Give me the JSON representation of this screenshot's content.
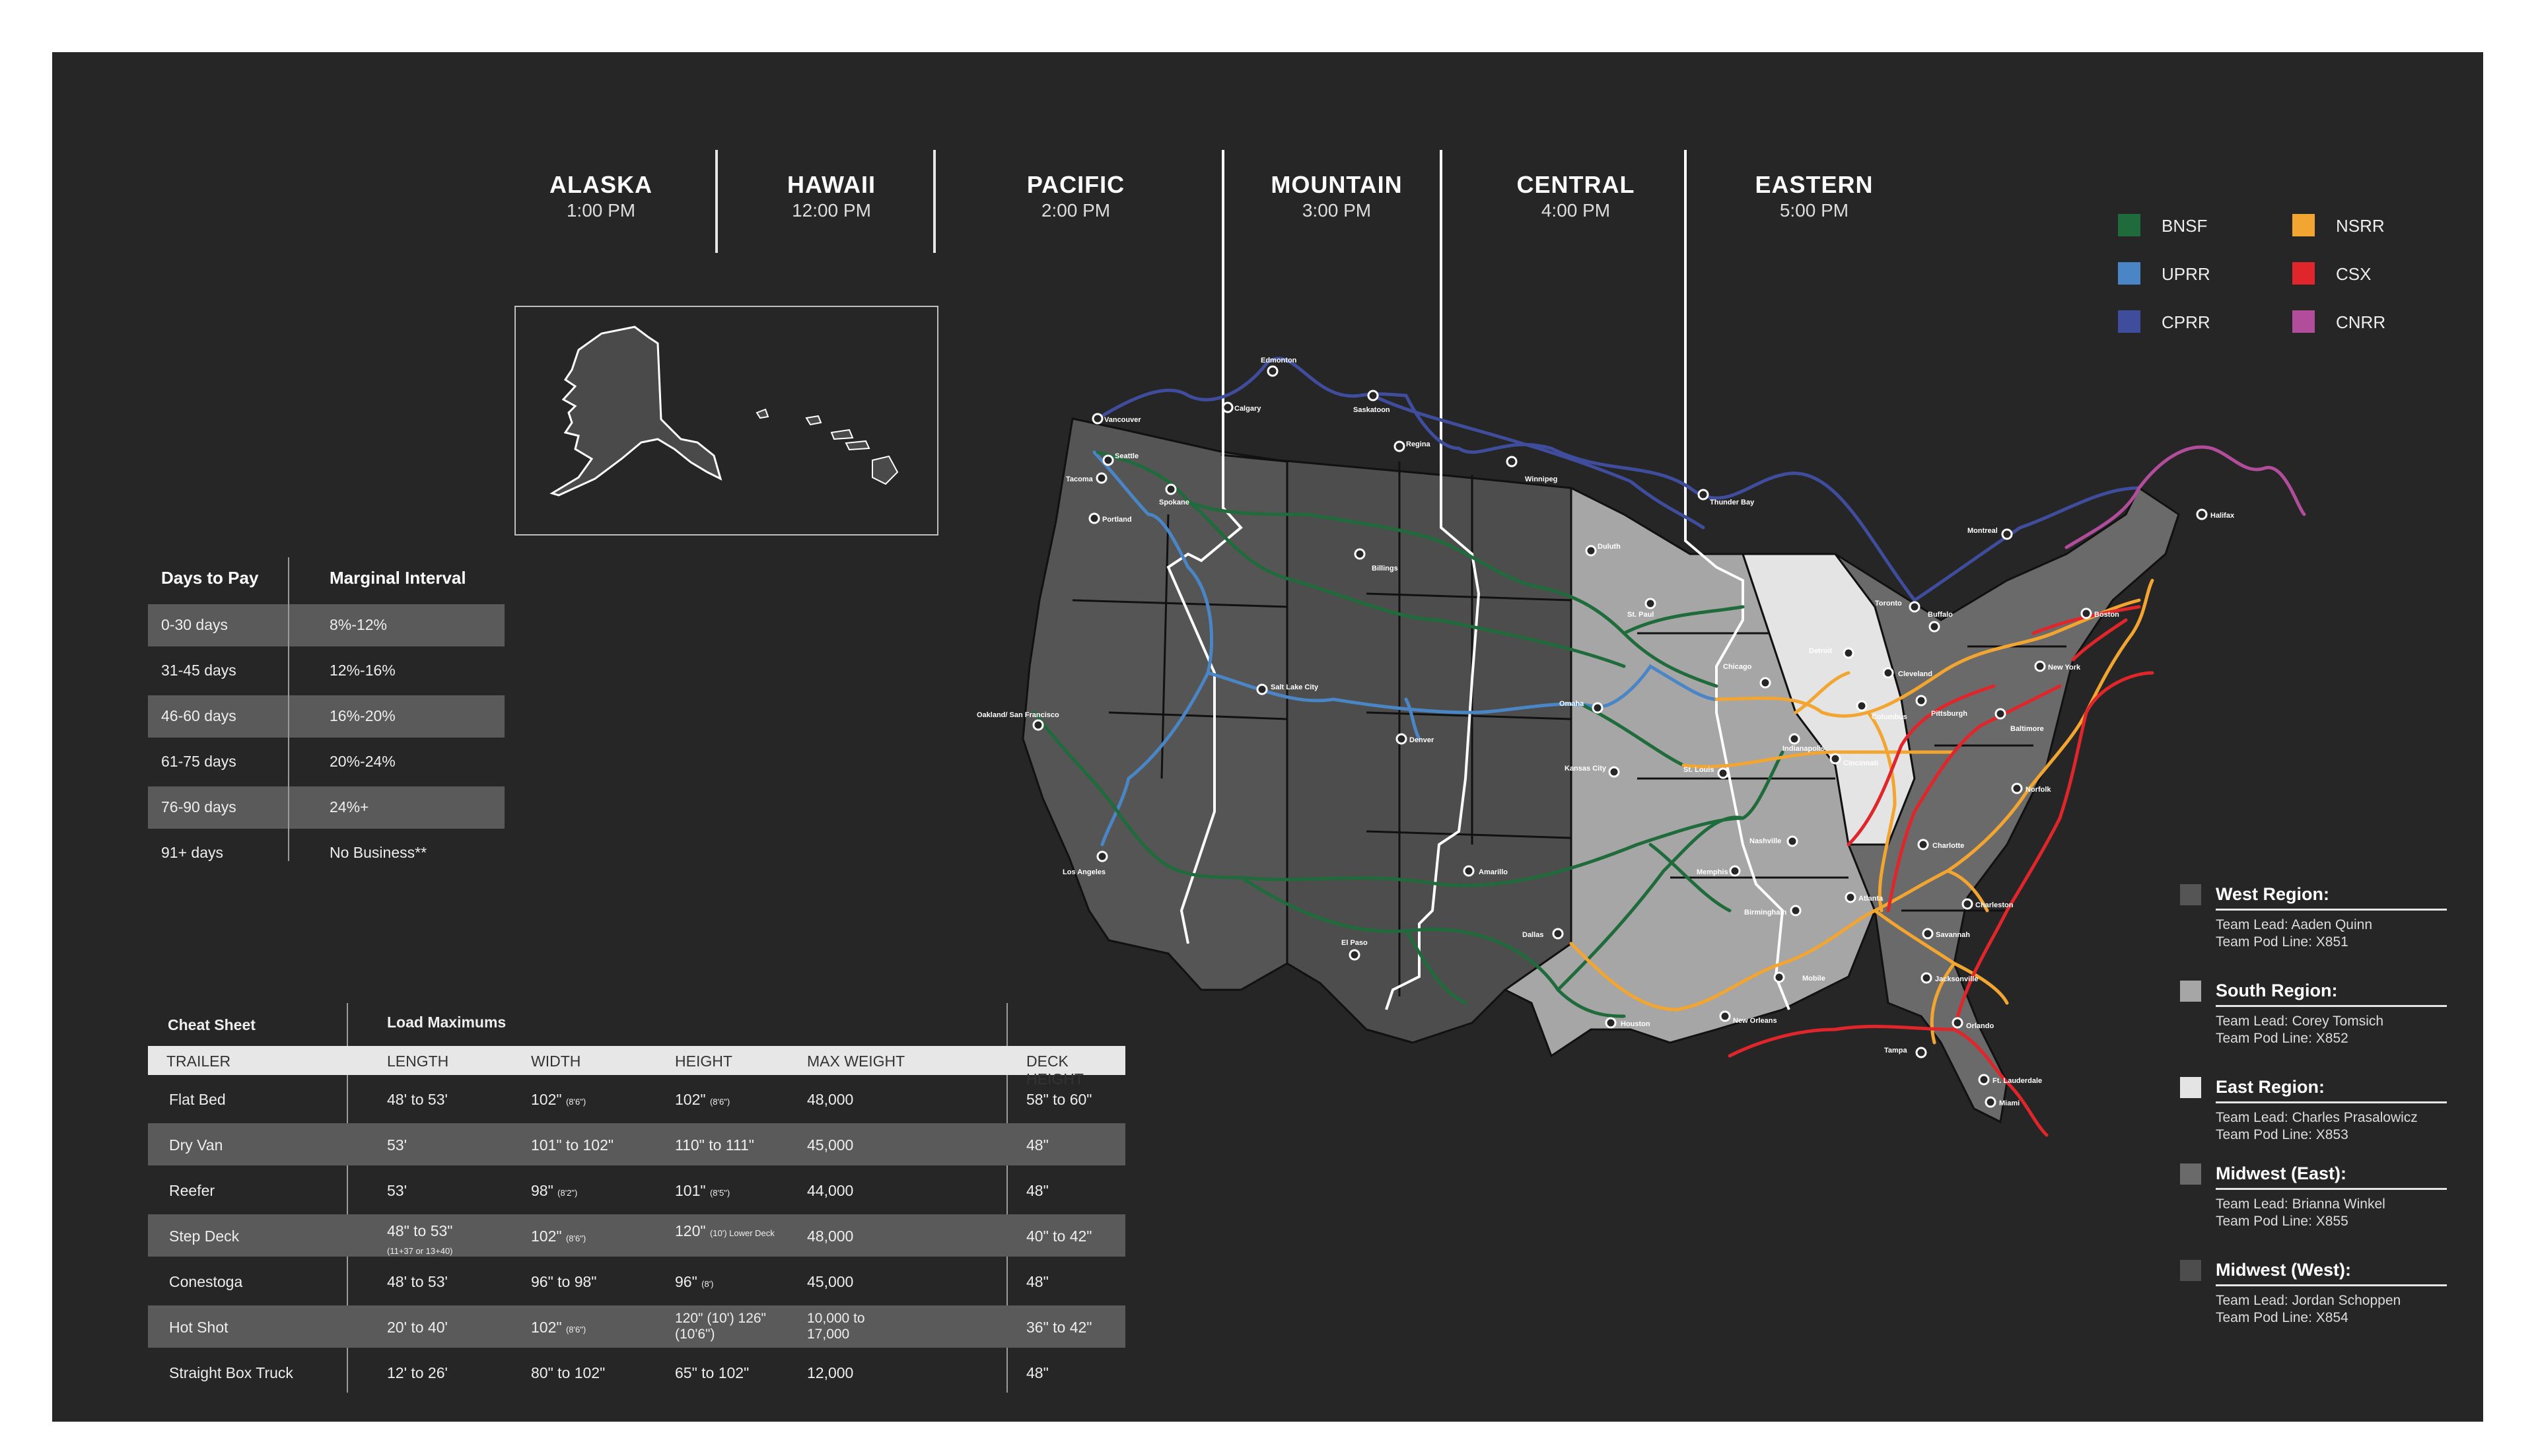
{
  "timezones": [
    {
      "name": "ALASKA",
      "time": "1:00 PM"
    },
    {
      "name": "HAWAII",
      "time": "12:00 PM"
    },
    {
      "name": "PACIFIC",
      "time": "2:00 PM"
    },
    {
      "name": "MOUNTAIN",
      "time": "3:00 PM"
    },
    {
      "name": "CENTRAL",
      "time": "4:00 PM"
    },
    {
      "name": "EASTERN",
      "time": "5:00 PM"
    }
  ],
  "railroads": [
    {
      "name": "BNSF",
      "color": "#1f6b3c"
    },
    {
      "name": "UPRR",
      "color": "#4a86c5"
    },
    {
      "name": "CPRR",
      "color": "#3f4d9c"
    },
    {
      "name": "NSRR",
      "color": "#f2a530"
    },
    {
      "name": "CSX",
      "color": "#e0262b"
    },
    {
      "name": "CNRR",
      "color": "#b24d9c"
    }
  ],
  "payment_table": {
    "headers": [
      "Days to Pay",
      "Marginal Interval"
    ],
    "rows": [
      [
        "0-30 days",
        "8%-12%"
      ],
      [
        "31-45 days",
        "12%-16%"
      ],
      [
        "46-60 days",
        "16%-20%"
      ],
      [
        "61-75 days",
        "20%-24%"
      ],
      [
        "76-90 days",
        "24%+"
      ],
      [
        "91+ days",
        "No Business**"
      ]
    ]
  },
  "cheat_sheet": {
    "title": "Cheat Sheet",
    "subtitle": "Load Maximums",
    "columns": [
      "TRAILER",
      "LENGTH",
      "WIDTH",
      "HEIGHT",
      "MAX WEIGHT",
      "DECK HEIGHT"
    ],
    "rows": [
      {
        "trailer": "Flat Bed",
        "length": "48' to 53'",
        "length_note": "",
        "width": "102\"",
        "width_note": "(8'6\")",
        "height": "102\"",
        "height_note": "(8'6\")",
        "weight": "48,000",
        "deck": "58\" to 60\""
      },
      {
        "trailer": "Dry Van",
        "length": "53'",
        "length_note": "",
        "width": "101\" to 102\"",
        "width_note": "",
        "height": "110\" to 111\"",
        "height_note": "",
        "weight": "45,000",
        "deck": "48\""
      },
      {
        "trailer": "Reefer",
        "length": "53'",
        "length_note": "",
        "width": "98\"",
        "width_note": "(8'2\")",
        "height": "101\"",
        "height_note": "(8'5\")",
        "weight": "44,000",
        "deck": "48\""
      },
      {
        "trailer": "Step Deck",
        "length": "48\" to 53\"",
        "length_note": "(11+37 or 13+40)",
        "width": "102\"",
        "width_note": "(8'6\")",
        "height": "120\"",
        "height_note": "(10') Lower Deck",
        "weight": "48,000",
        "deck": "40\" to 42\""
      },
      {
        "trailer": "Conestoga",
        "length": "48' to 53'",
        "length_note": "",
        "width": "96\" to 98\"",
        "width_note": "",
        "height": "96\"",
        "height_note": "(8')",
        "weight": "45,000",
        "deck": "48\""
      },
      {
        "trailer": "Hot Shot",
        "length": "20' to 40'",
        "length_note": "",
        "width": "102\"",
        "width_note": "(8'6\")",
        "height": "120\" (10') 126\" (10'6\")",
        "height_note": "",
        "weight": "10,000 to 17,000",
        "deck": "36\" to 42\""
      },
      {
        "trailer": "Straight Box Truck",
        "length": "12' to 26'",
        "length_note": "",
        "width": "80\" to 102\"",
        "width_note": "",
        "height": "65\" to 102\"",
        "height_note": "",
        "weight": "12,000",
        "deck": "48\""
      }
    ]
  },
  "regions": [
    {
      "title": "West Region:",
      "lead": "Team Lead: Aaden Quinn",
      "pod": "Team Pod Line: X851",
      "color": "#555555"
    },
    {
      "title": "South Region:",
      "lead": "Team Lead: Corey Tomsich",
      "pod": "Team Pod Line: X852",
      "color": "#a6a6a6"
    },
    {
      "title": "East Region:",
      "lead": "Team Lead: Charles Prasalowicz",
      "pod": "Team Pod Line: X853",
      "color": "#e4e4e4"
    },
    {
      "title": "Midwest (East):",
      "lead": "Team Lead: Brianna Winkel",
      "pod": "Team Pod Line: X855",
      "color": "#6a6a6a"
    },
    {
      "title": "Midwest (West):",
      "lead": "Team Lead: Jordan Schoppen",
      "pod": "Team Pod Line: X854",
      "color": "#4d4d4d"
    }
  ],
  "cities": [
    "Vancouver",
    "Edmonton",
    "Calgary",
    "Saskatoon",
    "Regina",
    "Winnipeg",
    "Thunder Bay",
    "Seattle",
    "Tacoma",
    "Portland",
    "Spokane",
    "Billings",
    "Duluth",
    "St. Paul",
    "Montreal",
    "Toronto",
    "Buffalo",
    "Boston",
    "Halifax",
    "Detroit",
    "Cleveland",
    "Chicago",
    "New York",
    "Omaha",
    "Salt Lake City",
    "Denver",
    "Oakland/ San Francisco",
    "Columbus",
    "Pittsburgh",
    "Baltimore",
    "Indianapolis",
    "Cincinnati",
    "Kansas City",
    "St. Louis",
    "Norfolk",
    "Nashville",
    "Charlotte",
    "Memphis",
    "Los Angeles",
    "Amarillo",
    "Atlanta",
    "Charleston",
    "Birmingham",
    "Savannah",
    "El Paso",
    "Dallas",
    "Mobile",
    "Jacksonville",
    "Houston",
    "New Orleans",
    "Orlando",
    "Tampa",
    "Ft. Lauderdale",
    "Miami"
  ]
}
